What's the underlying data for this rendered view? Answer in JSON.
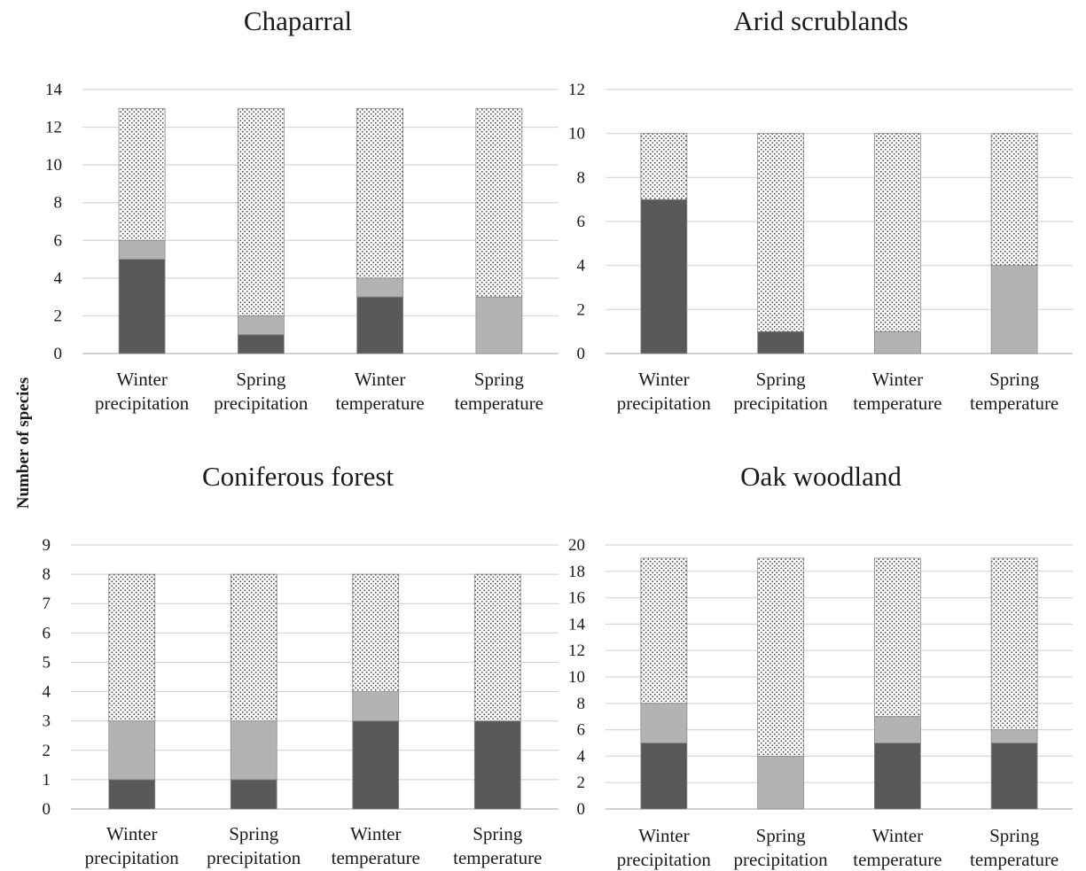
{
  "ylabel": "Number of species",
  "colors": {
    "dark": "#595959",
    "light": "#b3b3b3",
    "dotted_bg": "#ffffff",
    "dot": "#3a3a3a"
  },
  "chart_data": [
    {
      "type": "bar",
      "stacked": true,
      "title": "Chaparral",
      "categories": [
        [
          "Winter",
          "precipitation"
        ],
        [
          "Spring",
          "precipitation"
        ],
        [
          "Winter",
          "temperature"
        ],
        [
          "Spring",
          "temperature"
        ]
      ],
      "ylim": [
        0,
        14
      ],
      "yticks": [
        0,
        2,
        4,
        6,
        8,
        10,
        12,
        14
      ],
      "grid": true,
      "series": [
        {
          "style": "dark",
          "values": [
            5,
            1,
            3,
            0
          ]
        },
        {
          "style": "light",
          "values": [
            1,
            1,
            1,
            3
          ]
        },
        {
          "style": "dotted",
          "values": [
            7,
            11,
            9,
            10
          ]
        }
      ]
    },
    {
      "type": "bar",
      "stacked": true,
      "title": "Arid scrublands",
      "categories": [
        [
          "Winter",
          "precipitation"
        ],
        [
          "Spring",
          "precipitation"
        ],
        [
          "Winter",
          "temperature"
        ],
        [
          "Spring",
          "temperature"
        ]
      ],
      "ylim": [
        0,
        12
      ],
      "yticks": [
        0,
        2,
        4,
        6,
        8,
        10,
        12
      ],
      "grid": true,
      "series": [
        {
          "style": "dark",
          "values": [
            7,
            1,
            0,
            0
          ]
        },
        {
          "style": "light",
          "values": [
            0,
            0,
            1,
            4
          ]
        },
        {
          "style": "dotted",
          "values": [
            3,
            9,
            9,
            6
          ]
        }
      ]
    },
    {
      "type": "bar",
      "stacked": true,
      "title": "Coniferous forest",
      "categories": [
        [
          "Winter",
          "precipitation"
        ],
        [
          "Spring",
          "precipitation"
        ],
        [
          "Winter",
          "temperature"
        ],
        [
          "Spring",
          "temperature"
        ]
      ],
      "ylim": [
        0,
        9
      ],
      "yticks": [
        0,
        1,
        2,
        3,
        4,
        5,
        6,
        7,
        8,
        9
      ],
      "grid": true,
      "series": [
        {
          "style": "dark",
          "values": [
            1,
            1,
            3,
            3
          ]
        },
        {
          "style": "light",
          "values": [
            2,
            2,
            1,
            0
          ]
        },
        {
          "style": "dotted",
          "values": [
            5,
            5,
            4,
            5
          ]
        }
      ]
    },
    {
      "type": "bar",
      "stacked": true,
      "title": "Oak woodland",
      "categories": [
        [
          "Winter",
          "precipitation"
        ],
        [
          "Spring",
          "precipitation"
        ],
        [
          "Winter",
          "temperature"
        ],
        [
          "Spring",
          "temperature"
        ]
      ],
      "ylim": [
        0,
        20
      ],
      "yticks": [
        0,
        2,
        4,
        6,
        8,
        10,
        12,
        14,
        16,
        18,
        20
      ],
      "grid": true,
      "series": [
        {
          "style": "dark",
          "values": [
            5,
            0,
            5,
            5
          ]
        },
        {
          "style": "light",
          "values": [
            3,
            4,
            2,
            1
          ]
        },
        {
          "style": "dotted",
          "values": [
            11,
            15,
            12,
            13
          ]
        }
      ]
    }
  ]
}
